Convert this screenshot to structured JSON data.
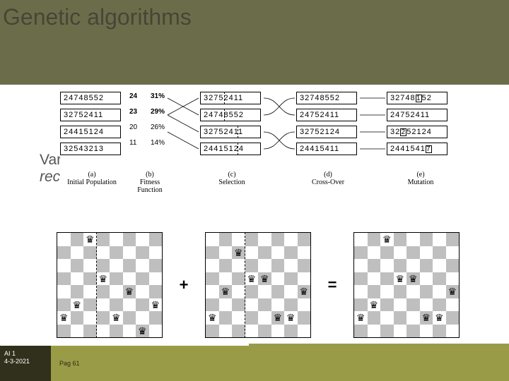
{
  "title": "Genetic algorithms",
  "body_line1": "Var",
  "body_line2": "rec",
  "diagram": {
    "col_a": {
      "label_p": "(a)",
      "label_t": "Initial Population",
      "rows": [
        "24748552",
        "32752411",
        "24415124",
        "32543213"
      ]
    },
    "col_b": {
      "label_p": "(b)",
      "label_t": "Fitness Function",
      "rows": [
        {
          "n": "24",
          "p": "31%"
        },
        {
          "n": "23",
          "p": "29%"
        },
        {
          "n": "20",
          "p": "26%"
        },
        {
          "n": "11",
          "p": "14%"
        }
      ]
    },
    "col_c": {
      "label_p": "(c)",
      "label_t": "Selection",
      "rows": [
        "32752411",
        "24748552",
        "32752411",
        "24415124"
      ]
    },
    "col_d": {
      "label_p": "(d)",
      "label_t": "Cross-Over",
      "rows": [
        "32748552",
        "24752411",
        "32752124",
        "24415411"
      ]
    },
    "col_e": {
      "label_p": "(e)",
      "label_t": "Mutation",
      "rows": [
        {
          "pre": "32748",
          "mut": "1",
          "post": "52"
        },
        {
          "pre": "24752411",
          "mut": "",
          "post": ""
        },
        {
          "pre": "32",
          "mut": "2",
          "post": "52124"
        },
        {
          "pre": "2441541",
          "mut": "7",
          "post": ""
        }
      ]
    }
  },
  "chess": {
    "op1": "+",
    "op2": "=",
    "board1_split_after_col": 3,
    "board2_split_after_col": 3,
    "queens1": [
      [
        6,
        1
      ],
      [
        5,
        2
      ],
      [
        0,
        3
      ],
      [
        3,
        4
      ],
      [
        6,
        5
      ],
      [
        4,
        6
      ],
      [
        7,
        7
      ],
      [
        5,
        8
      ]
    ],
    "queens2": [
      [
        6,
        1
      ],
      [
        4,
        2
      ],
      [
        1,
        3
      ],
      [
        3,
        4
      ],
      [
        3,
        5
      ],
      [
        6,
        6
      ],
      [
        6,
        7
      ],
      [
        4,
        8
      ]
    ],
    "queens3": [
      [
        6,
        1
      ],
      [
        5,
        2
      ],
      [
        0,
        3
      ],
      [
        3,
        4
      ],
      [
        3,
        5
      ],
      [
        6,
        6
      ],
      [
        6,
        7
      ],
      [
        4,
        8
      ]
    ]
  },
  "footer": {
    "l1": "AI 1",
    "l2": "4-3-2021",
    "page": "Pag 61"
  }
}
